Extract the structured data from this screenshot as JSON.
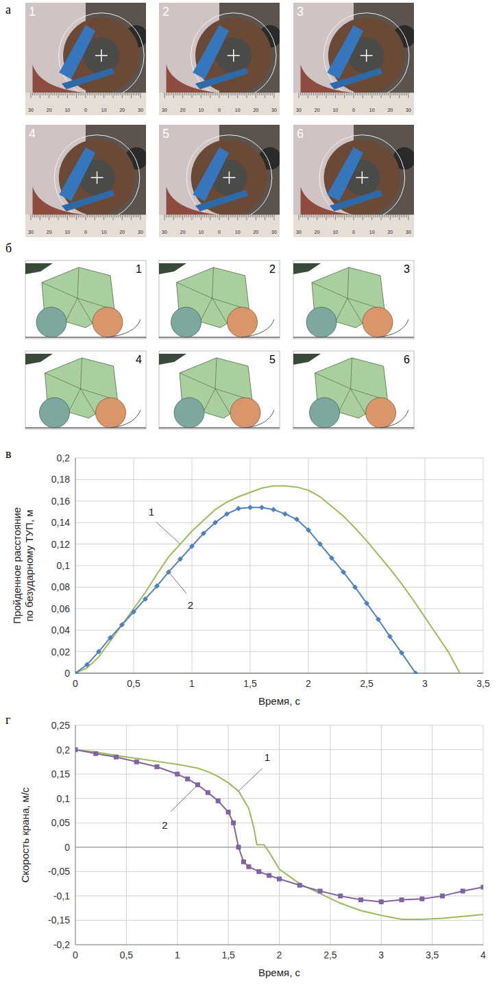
{
  "panels": [
    {
      "letter": "а",
      "type": "photo_grid",
      "frames": [
        "1",
        "2",
        "3",
        "4",
        "5",
        "6"
      ],
      "ruler_labels": [
        30,
        20,
        10,
        0,
        10,
        20,
        30
      ]
    },
    {
      "letter": "б",
      "type": "simulation_grid",
      "frames": [
        "1",
        "2",
        "3",
        "4",
        "5",
        "6"
      ]
    },
    {
      "letter": "в"
    },
    {
      "letter": "г"
    }
  ],
  "chart_data": [
    {
      "type": "line",
      "xlabel": "Время, с",
      "ylabel": "Пройденное расстояние по безударному ТУП, м",
      "xlim": [
        0,
        3.5
      ],
      "xticks": [
        0,
        {
          "value": 0.5,
          "label": "0,5"
        },
        1,
        {
          "value": 1.5,
          "label": "1,5"
        },
        2,
        {
          "value": 2.5,
          "label": "2,5"
        },
        3,
        {
          "value": 3.5,
          "label": "3,5"
        }
      ],
      "ylim": [
        0,
        0.2
      ],
      "yticks": [
        0,
        {
          "value": 0.02,
          "label": "0,02"
        },
        {
          "value": 0.04,
          "label": "0,04"
        },
        {
          "value": 0.06,
          "label": "0,06"
        },
        {
          "value": 0.08,
          "label": "0,08"
        },
        {
          "value": 0.1,
          "label": "0,1"
        },
        {
          "value": 0.12,
          "label": "0,12"
        },
        {
          "value": 0.14,
          "label": "0,14"
        },
        {
          "value": 0.16,
          "label": "0,16"
        },
        {
          "value": 0.18,
          "label": "0,18"
        },
        {
          "value": 0.2,
          "label": "0,2"
        }
      ],
      "grid": true,
      "series": [
        {
          "name": "1",
          "color": "#9bbb59",
          "marker": "none",
          "x": [
            0,
            0.1,
            0.2,
            0.3,
            0.4,
            0.5,
            0.6,
            0.7,
            0.8,
            0.9,
            1.0,
            1.1,
            1.2,
            1.3,
            1.4,
            1.5,
            1.6,
            1.7,
            1.8,
            1.9,
            2.0,
            2.1,
            2.2,
            2.3,
            2.4,
            2.5,
            2.6,
            2.7,
            2.8,
            2.9,
            3.0,
            3.1,
            3.2,
            3.3
          ],
          "values": [
            0,
            0.005,
            0.015,
            0.03,
            0.045,
            0.06,
            0.075,
            0.092,
            0.108,
            0.12,
            0.132,
            0.142,
            0.152,
            0.159,
            0.164,
            0.168,
            0.172,
            0.174,
            0.174,
            0.173,
            0.17,
            0.164,
            0.155,
            0.146,
            0.135,
            0.123,
            0.11,
            0.097,
            0.083,
            0.068,
            0.052,
            0.036,
            0.02,
            0
          ]
        },
        {
          "name": "2",
          "color": "#4f81bd",
          "marker": "diamond",
          "x": [
            0,
            0.1,
            0.2,
            0.3,
            0.4,
            0.5,
            0.6,
            0.7,
            0.8,
            0.9,
            1.0,
            1.1,
            1.2,
            1.3,
            1.4,
            1.5,
            1.6,
            1.7,
            1.8,
            1.9,
            2.0,
            2.1,
            2.2,
            2.3,
            2.4,
            2.5,
            2.6,
            2.7,
            2.8,
            2.92
          ],
          "values": [
            0,
            0.008,
            0.02,
            0.033,
            0.045,
            0.057,
            0.069,
            0.081,
            0.094,
            0.106,
            0.118,
            0.13,
            0.14,
            0.148,
            0.153,
            0.154,
            0.154,
            0.152,
            0.148,
            0.143,
            0.133,
            0.12,
            0.107,
            0.094,
            0.08,
            0.065,
            0.05,
            0.034,
            0.019,
            0
          ]
        }
      ]
    },
    {
      "type": "line",
      "xlabel": "Время, с",
      "ylabel": "Скорость крана, м/с",
      "xlim": [
        0,
        4
      ],
      "xticks": [
        0,
        {
          "value": 0.5,
          "label": "0,5"
        },
        1,
        {
          "value": 1.5,
          "label": "1,5"
        },
        2,
        {
          "value": 2.5,
          "label": "2,5"
        },
        3,
        {
          "value": 3.5,
          "label": "3,5"
        },
        4
      ],
      "ylim": [
        -0.2,
        0.25
      ],
      "yticks": [
        {
          "value": -0.2,
          "label": "-0,2"
        },
        {
          "value": -0.15,
          "label": "-0,15"
        },
        {
          "value": -0.1,
          "label": "-0,1"
        },
        {
          "value": -0.05,
          "label": "-0,05"
        },
        0,
        {
          "value": 0.05,
          "label": "0,05"
        },
        {
          "value": 0.1,
          "label": "0,1"
        },
        {
          "value": 0.15,
          "label": "0,15"
        },
        {
          "value": 0.2,
          "label": "0,2"
        },
        {
          "value": 0.25,
          "label": "0,25"
        }
      ],
      "grid": true,
      "series": [
        {
          "name": "1",
          "color": "#9bbb59",
          "marker": "none",
          "x": [
            0,
            0.2,
            0.4,
            0.6,
            0.8,
            1.0,
            1.2,
            1.3,
            1.4,
            1.5,
            1.6,
            1.7,
            1.75,
            1.78,
            1.85,
            1.9,
            2.0,
            2.2,
            2.4,
            2.6,
            2.8,
            3.0,
            3.2,
            3.4,
            3.6,
            3.8,
            4.0
          ],
          "values": [
            0.2,
            0.195,
            0.188,
            0.182,
            0.176,
            0.17,
            0.162,
            0.155,
            0.145,
            0.132,
            0.115,
            0.08,
            0.04,
            0.005,
            0.005,
            -0.01,
            -0.045,
            -0.075,
            -0.095,
            -0.115,
            -0.13,
            -0.14,
            -0.148,
            -0.148,
            -0.146,
            -0.142,
            -0.138
          ]
        },
        {
          "name": "2",
          "color": "#8064a2",
          "marker": "square",
          "x": [
            0,
            0.2,
            0.4,
            0.6,
            0.8,
            1.0,
            1.1,
            1.2,
            1.3,
            1.4,
            1.5,
            1.55,
            1.6,
            1.65,
            1.7,
            1.8,
            1.9,
            2.0,
            2.2,
            2.4,
            2.6,
            2.8,
            3.0,
            3.2,
            3.4,
            3.6,
            3.8,
            4.0
          ],
          "values": [
            0.2,
            0.192,
            0.185,
            0.175,
            0.165,
            0.15,
            0.14,
            0.128,
            0.112,
            0.095,
            0.072,
            0.05,
            0,
            -0.03,
            -0.04,
            -0.05,
            -0.058,
            -0.065,
            -0.078,
            -0.09,
            -0.1,
            -0.108,
            -0.112,
            -0.108,
            -0.106,
            -0.1,
            -0.09,
            -0.082
          ]
        }
      ]
    }
  ]
}
